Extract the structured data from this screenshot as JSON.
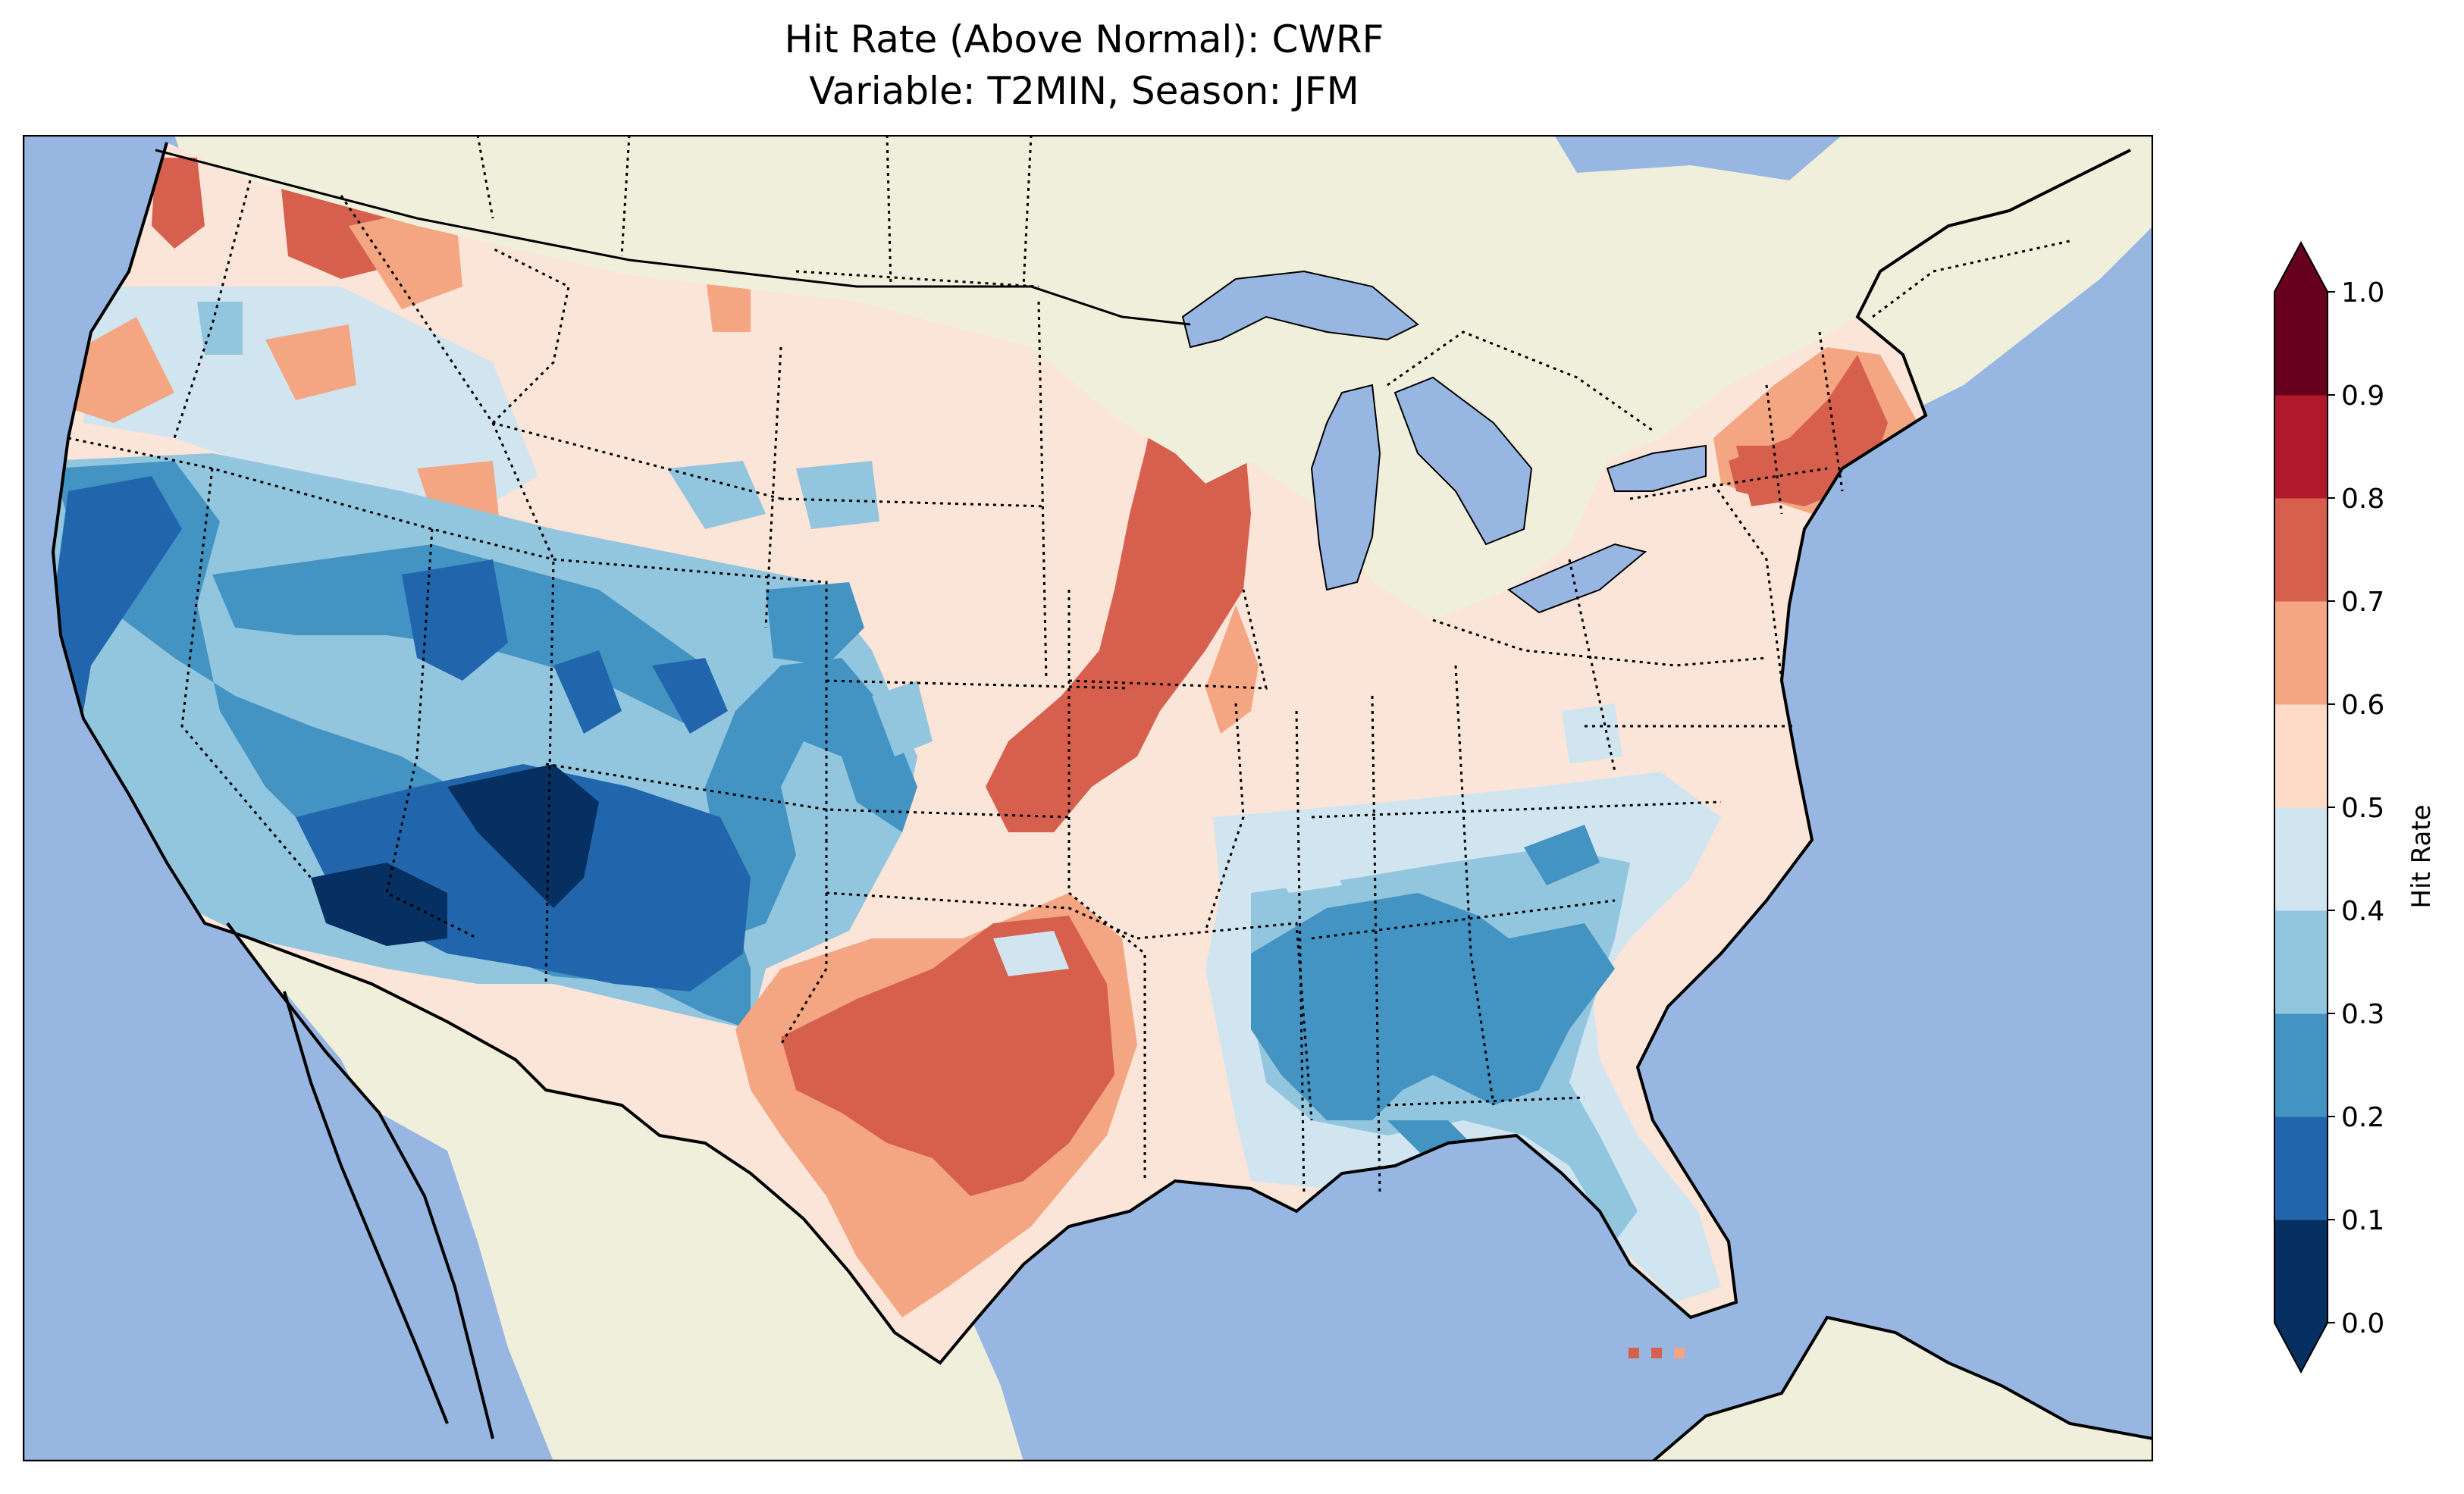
{
  "title": {
    "line1": "Hit Rate (Above Normal): CWRF",
    "line2": "Variable: T2MIN, Season: JFM"
  },
  "map": {
    "projection": "Lambert Conformal",
    "region": "Contiguous United States",
    "colors": {
      "ocean": "#97b6e1",
      "land": "#efefdb",
      "lakes": "#97b6e1"
    },
    "features": [
      "coastlines",
      "state-borders",
      "country-borders",
      "lakes"
    ]
  },
  "colorbar": {
    "label": "Hit Rate",
    "ticks": [
      "0.0",
      "0.1",
      "0.2",
      "0.3",
      "0.4",
      "0.5",
      "0.6",
      "0.7",
      "0.8",
      "0.9",
      "1.0"
    ],
    "bins": [
      {
        "range": [
          0.0,
          0.1
        ],
        "color": "#053061"
      },
      {
        "range": [
          0.1,
          0.2
        ],
        "color": "#2166ac"
      },
      {
        "range": [
          0.2,
          0.3
        ],
        "color": "#4393c3"
      },
      {
        "range": [
          0.3,
          0.4
        ],
        "color": "#92c5de"
      },
      {
        "range": [
          0.4,
          0.5
        ],
        "color": "#d1e5f0"
      },
      {
        "range": [
          0.5,
          0.6
        ],
        "color": "#fddbc7"
      },
      {
        "range": [
          0.6,
          0.7
        ],
        "color": "#f4a582"
      },
      {
        "range": [
          0.7,
          0.8
        ],
        "color": "#d6604d"
      },
      {
        "range": [
          0.8,
          0.9
        ],
        "color": "#b2182b"
      },
      {
        "range": [
          0.9,
          1.0
        ],
        "color": "#67001f"
      }
    ],
    "extend": "both",
    "under_color": "#053061",
    "over_color": "#67001f"
  }
}
